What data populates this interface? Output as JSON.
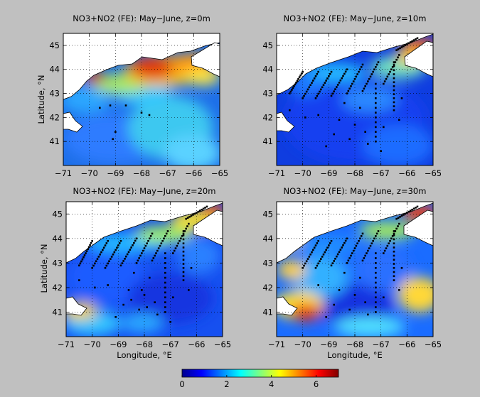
{
  "figure": {
    "background": "#c0c0c0",
    "colormap": "jet",
    "land_color": "#ffffff",
    "station_marker_color": "#000000"
  },
  "chart_data": [
    {
      "type": "heatmap",
      "title": "NO3+NO2 (FE):   May−June, z=0m",
      "xlabel": "",
      "ylabel": "Latitude, °N",
      "xlim": [
        -71,
        -65
      ],
      "ylim": [
        40,
        45.5
      ],
      "xticks": [
        -71,
        -70,
        -69,
        -68,
        -67,
        -66,
        -65
      ],
      "yticks": [
        41,
        42,
        43,
        44,
        45
      ],
      "grid": true,
      "station_tracks": [],
      "station_points": [
        [
          -69.6,
          42.4
        ],
        [
          -69.2,
          42.5
        ],
        [
          -68.6,
          42.5
        ],
        [
          -68.0,
          42.2
        ],
        [
          -67.7,
          42.1
        ],
        [
          -69.0,
          41.4
        ],
        [
          -69.1,
          41.1
        ]
      ]
    },
    {
      "type": "heatmap",
      "title": "NO3+NO2 (FE):   May−June, z=10m",
      "xlabel": "",
      "ylabel": "",
      "xlim": [
        -71,
        -65
      ],
      "ylim": [
        40,
        45.5
      ],
      "xticks": [
        -71,
        -70,
        -69,
        -68,
        -67,
        -66,
        -65
      ],
      "yticks": [
        41,
        42,
        43,
        44,
        45
      ],
      "grid": true,
      "station_tracks": [
        {
          "from": [
            -70.5,
            43.0
          ],
          "to": [
            -70.0,
            43.9
          ]
        },
        {
          "from": [
            -70.0,
            42.8
          ],
          "to": [
            -69.4,
            43.9
          ]
        },
        {
          "from": [
            -69.5,
            42.8
          ],
          "to": [
            -68.9,
            43.9
          ]
        },
        {
          "from": [
            -68.9,
            42.9
          ],
          "to": [
            -68.3,
            44.0
          ]
        },
        {
          "from": [
            -68.3,
            43.0
          ],
          "to": [
            -67.7,
            44.2
          ]
        },
        {
          "from": [
            -67.7,
            43.1
          ],
          "to": [
            -67.1,
            44.3
          ]
        },
        {
          "from": [
            -66.9,
            43.4
          ],
          "to": [
            -66.3,
            44.6
          ]
        },
        {
          "from": [
            -66.4,
            44.8
          ],
          "to": [
            -65.6,
            45.3
          ]
        },
        {
          "from": [
            -67.2,
            41.0
          ],
          "to": [
            -67.2,
            43.4
          ]
        },
        {
          "from": [
            -66.5,
            42.3
          ],
          "to": [
            -66.5,
            44.3
          ]
        }
      ],
      "station_points": [
        [
          -70.5,
          42.3
        ],
        [
          -69.9,
          42.0
        ],
        [
          -69.4,
          42.1
        ],
        [
          -68.6,
          41.9
        ],
        [
          -68.0,
          41.7
        ],
        [
          -67.6,
          41.4
        ],
        [
          -68.2,
          41.1
        ],
        [
          -68.8,
          41.3
        ],
        [
          -67.5,
          40.9
        ],
        [
          -66.9,
          41.6
        ],
        [
          -66.3,
          41.9
        ],
        [
          -68.4,
          42.6
        ],
        [
          -67.8,
          42.4
        ],
        [
          -69.1,
          40.8
        ],
        [
          -67.0,
          40.6
        ],
        [
          -66.2,
          42.8
        ]
      ]
    },
    {
      "type": "heatmap",
      "title": "NO3+NO2 (FE):   May−June, z=20m",
      "xlabel": "Longitude, °E",
      "ylabel": "Latitude, °N",
      "xlim": [
        -71,
        -65
      ],
      "ylim": [
        40,
        45.5
      ],
      "xticks": [
        -71,
        -70,
        -69,
        -68,
        -67,
        -66,
        -65
      ],
      "yticks": [
        41,
        42,
        43,
        44,
        45
      ],
      "grid": true,
      "station_tracks": [
        {
          "from": [
            -70.5,
            42.9
          ],
          "to": [
            -70.0,
            43.9
          ]
        },
        {
          "from": [
            -70.0,
            42.8
          ],
          "to": [
            -69.4,
            43.9
          ]
        },
        {
          "from": [
            -69.5,
            42.8
          ],
          "to": [
            -68.9,
            43.9
          ]
        },
        {
          "from": [
            -68.9,
            42.9
          ],
          "to": [
            -68.3,
            44.0
          ]
        },
        {
          "from": [
            -68.3,
            43.0
          ],
          "to": [
            -67.7,
            44.2
          ]
        },
        {
          "from": [
            -67.7,
            43.1
          ],
          "to": [
            -67.1,
            44.3
          ]
        },
        {
          "from": [
            -66.9,
            43.4
          ],
          "to": [
            -66.3,
            44.6
          ]
        },
        {
          "from": [
            -66.4,
            44.8
          ],
          "to": [
            -65.6,
            45.3
          ]
        },
        {
          "from": [
            -67.2,
            41.0
          ],
          "to": [
            -67.2,
            43.4
          ]
        },
        {
          "from": [
            -66.5,
            42.3
          ],
          "to": [
            -66.5,
            44.3
          ]
        }
      ],
      "station_points": [
        [
          -70.5,
          42.3
        ],
        [
          -69.9,
          42.0
        ],
        [
          -69.4,
          42.1
        ],
        [
          -68.6,
          41.9
        ],
        [
          -68.0,
          41.7
        ],
        [
          -67.6,
          41.4
        ],
        [
          -68.2,
          41.1
        ],
        [
          -68.8,
          41.3
        ],
        [
          -67.5,
          40.9
        ],
        [
          -66.9,
          41.6
        ],
        [
          -66.3,
          41.9
        ],
        [
          -68.4,
          42.6
        ],
        [
          -67.8,
          42.4
        ],
        [
          -69.1,
          40.8
        ],
        [
          -67.0,
          40.6
        ],
        [
          -66.2,
          42.8
        ],
        [
          -68.5,
          41.5
        ],
        [
          -68.1,
          41.9
        ],
        [
          -67.9,
          41.2
        ]
      ]
    },
    {
      "type": "heatmap",
      "title": "NO3+NO2 (FE):   May−June, z=30m",
      "xlabel": "Longitude, °E",
      "ylabel": "",
      "xlim": [
        -71,
        -65
      ],
      "ylim": [
        40,
        45.5
      ],
      "xticks": [
        -71,
        -70,
        -69,
        -68,
        -67,
        -66,
        -65
      ],
      "yticks": [
        41,
        42,
        43,
        44,
        45
      ],
      "grid": true,
      "station_tracks": [
        {
          "from": [
            -70.0,
            42.8
          ],
          "to": [
            -69.4,
            43.9
          ]
        },
        {
          "from": [
            -69.5,
            42.8
          ],
          "to": [
            -68.9,
            43.9
          ]
        },
        {
          "from": [
            -68.9,
            42.9
          ],
          "to": [
            -68.3,
            44.0
          ]
        },
        {
          "from": [
            -68.3,
            43.0
          ],
          "to": [
            -67.7,
            44.2
          ]
        },
        {
          "from": [
            -67.7,
            43.1
          ],
          "to": [
            -67.1,
            44.3
          ]
        },
        {
          "from": [
            -66.9,
            43.4
          ],
          "to": [
            -66.3,
            44.6
          ]
        },
        {
          "from": [
            -66.4,
            44.8
          ],
          "to": [
            -65.6,
            45.3
          ]
        },
        {
          "from": [
            -67.2,
            41.0
          ],
          "to": [
            -67.2,
            43.4
          ]
        },
        {
          "from": [
            -66.5,
            42.3
          ],
          "to": [
            -66.5,
            44.3
          ]
        }
      ],
      "station_points": [
        [
          -69.4,
          42.1
        ],
        [
          -68.6,
          41.9
        ],
        [
          -68.0,
          41.7
        ],
        [
          -67.6,
          41.4
        ],
        [
          -68.2,
          41.1
        ],
        [
          -68.8,
          41.3
        ],
        [
          -67.5,
          40.9
        ],
        [
          -66.9,
          41.6
        ],
        [
          -66.3,
          41.9
        ],
        [
          -68.4,
          42.6
        ],
        [
          -67.8,
          42.4
        ],
        [
          -69.1,
          40.8
        ],
        [
          -66.2,
          42.8
        ]
      ]
    }
  ],
  "colorbar": {
    "min": 0,
    "max": 7,
    "ticks": [
      0,
      2,
      4,
      6
    ],
    "tick_labels": [
      "0",
      "2",
      "4",
      "6"
    ]
  }
}
